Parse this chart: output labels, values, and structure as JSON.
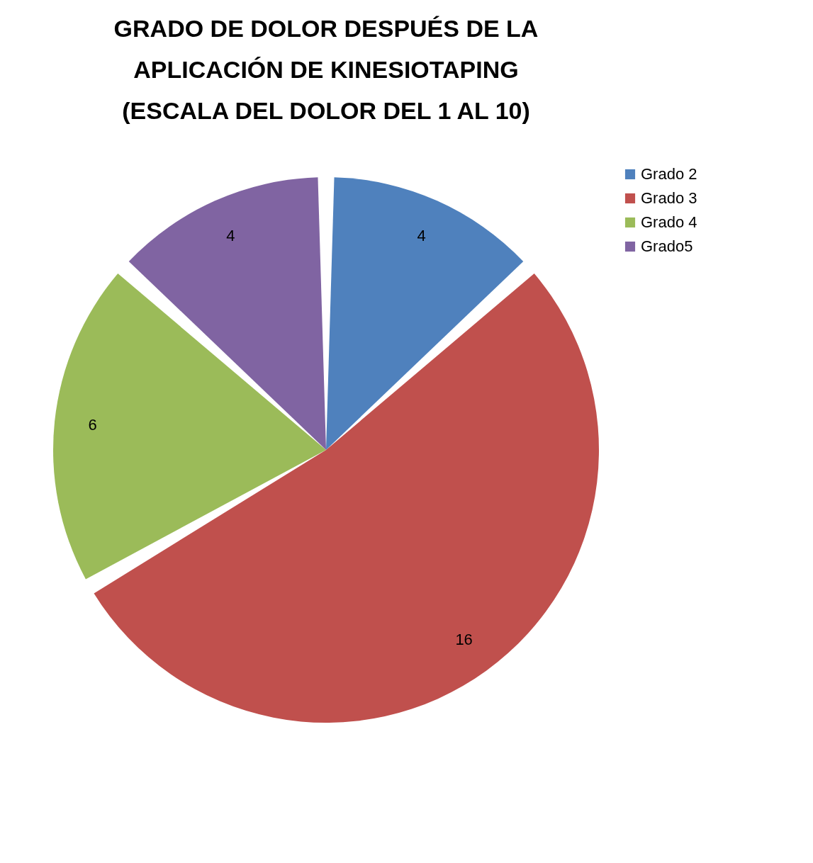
{
  "chart_data": {
    "type": "pie",
    "title": "GRADO DE DOLOR DESPUÉS DE LA APLICACIÓN DE KINESIOTAPING (ESCALA DEL DOLOR DEL 1 AL 10)",
    "categories": [
      "Grado 2",
      "Grado 3",
      "Grado 4",
      "Grado5"
    ],
    "values": [
      4,
      16,
      6,
      4
    ],
    "colors": [
      "#4f81bd",
      "#c0504d",
      "#9bbb59",
      "#8064a2"
    ],
    "data_labels": true,
    "legend": "right"
  }
}
